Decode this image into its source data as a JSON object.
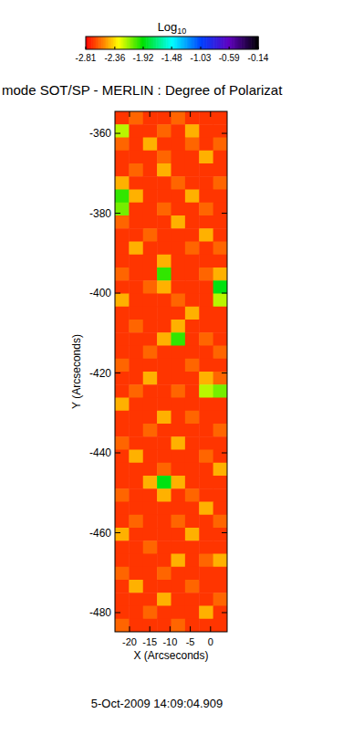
{
  "chart_data": {
    "type": "heatmap",
    "title": "mode SOT/SP - MERLIN : Degree of Polarizat",
    "xlabel": "X (Arcseconds)",
    "ylabel": "Y (Arcseconds)",
    "annotations": [
      "5-Oct-2009 14:09:04.909"
    ],
    "xlim": [
      -23.6,
      4.1
    ],
    "ylim": [
      -484.8,
      -354.5
    ],
    "xticks": [
      -20,
      -15,
      -10,
      -5,
      0
    ],
    "yticks": [
      -360,
      -380,
      -400,
      -420,
      -440,
      -460,
      -480
    ],
    "colorbar": {
      "label": "Log10",
      "range": [
        -2.81,
        -0.14
      ],
      "ticks": [
        -2.81,
        -2.36,
        -1.92,
        -1.48,
        -1.03,
        -0.59,
        -0.14
      ]
    },
    "cells": [
      [
        -2.7,
        -2.6,
        -2.7,
        -2.7,
        -2.6,
        -2.7,
        -2.7,
        -2.7
      ],
      [
        -2.2,
        -2.7,
        -2.7,
        -2.6,
        -2.7,
        -2.45,
        -2.7,
        -2.7
      ],
      [
        -2.6,
        -2.7,
        -2.45,
        -2.7,
        -2.7,
        -2.6,
        -2.7,
        -2.6
      ],
      [
        -2.7,
        -2.7,
        -2.7,
        -2.6,
        -2.7,
        -2.7,
        -2.45,
        -2.7
      ],
      [
        -2.7,
        -2.6,
        -2.7,
        -2.45,
        -2.7,
        -2.7,
        -2.7,
        -2.7
      ],
      [
        -2.45,
        -2.7,
        -2.7,
        -2.7,
        -2.6,
        -2.7,
        -2.7,
        -2.6
      ],
      [
        -2.0,
        -2.45,
        -2.7,
        -2.7,
        -2.7,
        -2.45,
        -2.7,
        -2.7
      ],
      [
        -2.1,
        -2.7,
        -2.7,
        -2.6,
        -2.7,
        -2.7,
        -2.6,
        -2.7
      ],
      [
        -2.6,
        -2.7,
        -2.7,
        -2.7,
        -2.45,
        -2.7,
        -2.7,
        -2.7
      ],
      [
        -2.7,
        -2.7,
        -2.6,
        -2.7,
        -2.7,
        -2.7,
        -2.45,
        -2.7
      ],
      [
        -2.7,
        -2.45,
        -2.7,
        -2.7,
        -2.7,
        -2.6,
        -2.7,
        -2.6
      ],
      [
        -2.7,
        -2.7,
        -2.7,
        -2.45,
        -2.7,
        -2.7,
        -2.7,
        -2.7
      ],
      [
        -2.6,
        -2.7,
        -2.7,
        -2.0,
        -2.7,
        -2.7,
        -2.6,
        -2.45
      ],
      [
        -2.7,
        -2.7,
        -2.6,
        -2.45,
        -2.7,
        -2.7,
        -2.7,
        -1.9
      ],
      [
        -2.45,
        -2.7,
        -2.7,
        -2.7,
        -2.6,
        -2.7,
        -2.7,
        -2.2
      ],
      [
        -2.7,
        -2.7,
        -2.7,
        -2.7,
        -2.7,
        -2.45,
        -2.7,
        -2.7
      ],
      [
        -2.7,
        -2.6,
        -2.7,
        -2.7,
        -2.45,
        -2.7,
        -2.7,
        -2.7
      ],
      [
        -2.7,
        -2.7,
        -2.7,
        -2.45,
        -2.0,
        -2.7,
        -2.6,
        -2.7
      ],
      [
        -2.7,
        -2.7,
        -2.6,
        -2.7,
        -2.7,
        -2.7,
        -2.7,
        -2.6
      ],
      [
        -2.6,
        -2.7,
        -2.7,
        -2.7,
        -2.7,
        -2.6,
        -2.7,
        -2.7
      ],
      [
        -2.7,
        -2.7,
        -2.45,
        -2.7,
        -2.7,
        -2.7,
        -2.45,
        -2.6
      ],
      [
        -2.7,
        -2.6,
        -2.7,
        -2.7,
        -2.6,
        -2.7,
        -2.2,
        -2.1
      ],
      [
        -2.45,
        -2.7,
        -2.7,
        -2.7,
        -2.7,
        -2.7,
        -2.7,
        -2.7
      ],
      [
        -2.7,
        -2.7,
        -2.7,
        -2.45,
        -2.7,
        -2.6,
        -2.7,
        -2.7
      ],
      [
        -2.7,
        -2.7,
        -2.6,
        -2.7,
        -2.7,
        -2.7,
        -2.7,
        -2.6
      ],
      [
        -2.6,
        -2.7,
        -2.7,
        -2.7,
        -2.45,
        -2.7,
        -2.7,
        -2.7
      ],
      [
        -2.7,
        -2.45,
        -2.7,
        -2.7,
        -2.7,
        -2.7,
        -2.6,
        -2.7
      ],
      [
        -2.7,
        -2.7,
        -2.7,
        -2.6,
        -2.7,
        -2.7,
        -2.7,
        -2.45
      ],
      [
        -2.7,
        -2.7,
        -2.45,
        -1.9,
        -2.45,
        -2.7,
        -2.7,
        -2.7
      ],
      [
        -2.6,
        -2.7,
        -2.7,
        -2.45,
        -2.7,
        -2.6,
        -2.7,
        -2.7
      ],
      [
        -2.7,
        -2.7,
        -2.7,
        -2.7,
        -2.7,
        -2.7,
        -2.45,
        -2.7
      ],
      [
        -2.7,
        -2.6,
        -2.7,
        -2.7,
        -2.6,
        -2.7,
        -2.7,
        -2.6
      ],
      [
        -2.45,
        -2.7,
        -2.7,
        -2.7,
        -2.7,
        -2.45,
        -2.7,
        -2.7
      ],
      [
        -2.7,
        -2.7,
        -2.6,
        -2.7,
        -2.7,
        -2.7,
        -2.7,
        -2.7
      ],
      [
        -2.7,
        -2.7,
        -2.7,
        -2.7,
        -2.45,
        -2.7,
        -2.6,
        -2.45
      ],
      [
        -2.6,
        -2.7,
        -2.7,
        -2.6,
        -2.7,
        -2.7,
        -2.7,
        -2.7
      ],
      [
        -2.7,
        -2.45,
        -2.7,
        -2.7,
        -2.7,
        -2.6,
        -2.7,
        -2.7
      ],
      [
        -2.7,
        -2.7,
        -2.7,
        -2.45,
        -2.7,
        -2.7,
        -2.7,
        -2.6
      ],
      [
        -2.7,
        -2.7,
        -2.6,
        -2.7,
        -2.7,
        -2.7,
        -2.45,
        -2.7
      ],
      [
        -2.6,
        -2.7,
        -2.7,
        -2.7,
        -2.6,
        -2.7,
        -2.7,
        -2.7
      ]
    ]
  }
}
